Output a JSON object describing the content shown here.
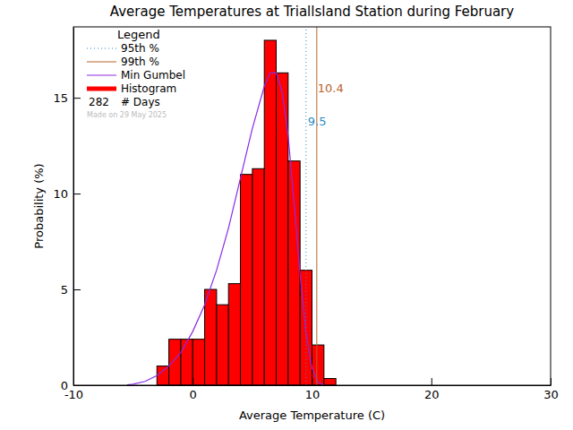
{
  "chart_data": {
    "type": "histogram",
    "title": "Average Temperatures at Triallsland Station during February",
    "x_label": "Average Temperature (C)",
    "y_label": "Probability (%)",
    "legend": "top-left",
    "legend_title": "Legend",
    "days": 282,
    "days_label": "# Days",
    "note": "Made on 29 May 2025",
    "xlim": [
      -10,
      30
    ],
    "xticks": [
      -10,
      0,
      10,
      20,
      30
    ],
    "ylim": [
      0,
      18.7
    ],
    "yticks": [
      0,
      5,
      10,
      15
    ],
    "bins": [
      -3,
      -2,
      -1,
      0,
      1,
      2,
      3,
      4,
      5,
      6,
      7,
      8,
      9,
      10,
      11,
      12
    ],
    "series": [
      {
        "name": "95th %",
        "type": "vline",
        "color": "#2b8cc4",
        "line_style": "dotted",
        "x": [
          9.5
        ]
      },
      {
        "name": "99th %",
        "type": "vline",
        "color": "#b8622a",
        "line_style": "solid",
        "x": [
          10.4
        ]
      },
      {
        "name": "Min Gumbel",
        "type": "line",
        "color": "#8a2be2",
        "x": [
          -5.5,
          -5,
          -4,
          -3,
          -2,
          -1,
          0,
          1,
          2,
          3,
          4,
          5,
          6,
          6.5,
          7,
          7.5,
          8,
          8.5,
          9,
          9.5,
          10,
          10.5,
          11
        ],
        "values": [
          0.02,
          0.05,
          0.2,
          0.5,
          1.0,
          1.7,
          2.8,
          4.2,
          6.0,
          8.2,
          10.8,
          13.4,
          15.6,
          16.3,
          16.3,
          15.3,
          13.0,
          9.5,
          5.8,
          2.7,
          0.9,
          0.15,
          0.0
        ]
      },
      {
        "name": "Histogram",
        "type": "bar",
        "color": "#ff0000",
        "values": [
          1.0,
          2.4,
          2.4,
          2.4,
          5.0,
          4.2,
          5.3,
          11.0,
          11.3,
          18.0,
          16.3,
          11.7,
          6.0,
          2.1,
          0.35
        ]
      }
    ]
  }
}
